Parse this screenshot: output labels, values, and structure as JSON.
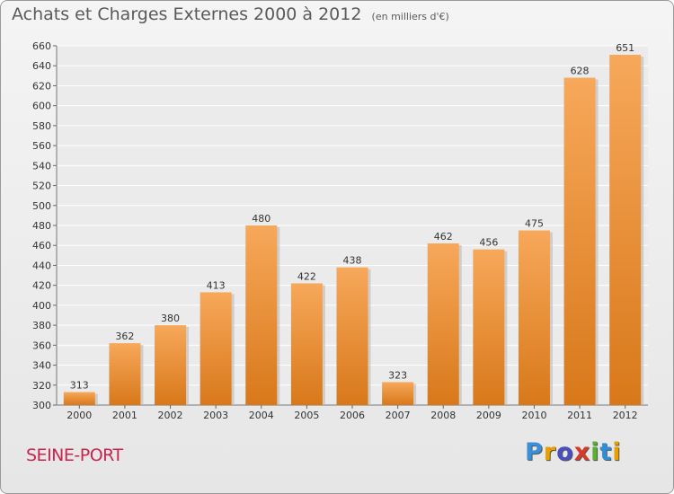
{
  "title": "Achats et Charges Externes 2000 à 2012",
  "unit": "(en milliers d'€)",
  "place": "SEINE-PORT",
  "brand": {
    "letters": [
      "P",
      "r",
      "o",
      "x",
      "i",
      "t",
      "i"
    ],
    "colors": [
      "#3a8fd8",
      "#e8a000",
      "#4a4fc0",
      "#d63a2a",
      "#5ab030",
      "#2f8fd6",
      "#e8a000"
    ]
  },
  "colors": {
    "bar": "#f09535",
    "bar_light": "#f7a85a",
    "bar_dark": "#d8781a"
  },
  "chart_data": {
    "type": "bar",
    "title": "Achats et Charges Externes 2000 à 2012",
    "subtitle": "(en milliers d'€)",
    "xlabel": "",
    "ylabel": "",
    "categories": [
      "2000",
      "2001",
      "2002",
      "2003",
      "2004",
      "2005",
      "2006",
      "2007",
      "2008",
      "2009",
      "2010",
      "2011",
      "2012"
    ],
    "values": [
      313,
      362,
      380,
      413,
      480,
      422,
      438,
      323,
      462,
      456,
      475,
      628,
      651
    ],
    "ylim": [
      300,
      660
    ],
    "yticks": [
      300,
      320,
      340,
      360,
      380,
      400,
      420,
      440,
      460,
      480,
      500,
      520,
      540,
      560,
      580,
      600,
      620,
      640,
      660
    ],
    "grid": true,
    "legend": "none"
  }
}
